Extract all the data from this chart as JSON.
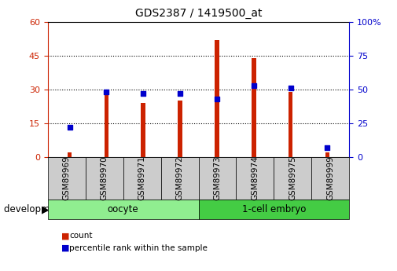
{
  "title": "GDS2387 / 1419500_at",
  "samples": [
    "GSM89969",
    "GSM89970",
    "GSM89971",
    "GSM89972",
    "GSM89973",
    "GSM89974",
    "GSM89975",
    "GSM89999"
  ],
  "count_values": [
    2,
    29,
    24,
    25,
    52,
    44,
    29,
    2
  ],
  "percentile_values": [
    22,
    48,
    47,
    47,
    43,
    53,
    51,
    7
  ],
  "groups": [
    {
      "label": "oocyte",
      "start": 0,
      "end": 4,
      "color": "#90EE90"
    },
    {
      "label": "1-cell embryo",
      "start": 4,
      "end": 8,
      "color": "#44CC44"
    }
  ],
  "bar_color": "#CC2200",
  "dot_color": "#0000CC",
  "left_axis_color": "#CC2200",
  "right_axis_color": "#0000CC",
  "left_ylim": [
    0,
    60
  ],
  "right_ylim": [
    0,
    100
  ],
  "left_yticks": [
    0,
    15,
    30,
    45,
    60
  ],
  "right_yticks": [
    0,
    25,
    50,
    75,
    100
  ],
  "right_yticklabels": [
    "0",
    "25",
    "50",
    "75",
    "100%"
  ],
  "bg_color": "#FFFFFF",
  "plot_bg_color": "#FFFFFF",
  "grid_color": "#000000",
  "bar_width": 0.12,
  "dot_size": 20,
  "label_box_color": "#CCCCCC",
  "tick_label_fontsize": 7.5,
  "group_label_fontsize": 8.5,
  "dev_stage_fontsize": 8.5
}
